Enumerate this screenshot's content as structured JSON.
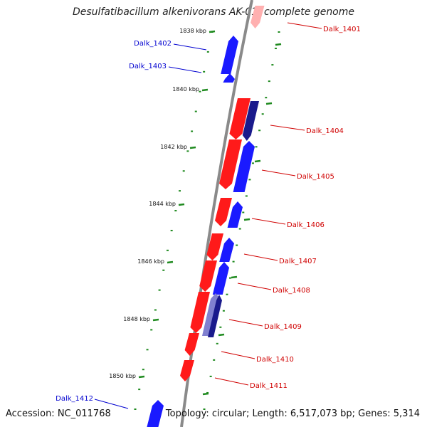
{
  "title": "Desulfatibacillum alkenivorans AK-01, complete genome",
  "footer": {
    "accession": "Accession: NC_011768",
    "summary": "Topology: circular; Length: 6,517,073 bp; Genes: 5,314"
  },
  "colors": {
    "forward": "#ff1a1a",
    "reverse": "#1a1aff",
    "reverse_dark": "#1a1a8c",
    "reverse_light": "#8080d0",
    "backbone": "#8a8a8a",
    "ticks": "#1f8a1f",
    "label_forward": "#d00000",
    "label_reverse": "#0000d0"
  },
  "ruler": {
    "left_ticks": [
      "1838 kbp",
      "1840 kbp",
      "1842 kbp",
      "1844 kbp",
      "1846 kbp",
      "1848 kbp",
      "1850 kbp"
    ]
  },
  "genes": [
    {
      "label": "Dalk_1401",
      "strand": "+"
    },
    {
      "label": "Dalk_1402",
      "strand": "-"
    },
    {
      "label": "Dalk_1403",
      "strand": "-"
    },
    {
      "label": "Dalk_1404",
      "strand": "+"
    },
    {
      "label": "Dalk_1405",
      "strand": "+"
    },
    {
      "label": "Dalk_1406",
      "strand": "+"
    },
    {
      "label": "Dalk_1407",
      "strand": "+"
    },
    {
      "label": "Dalk_1408",
      "strand": "+"
    },
    {
      "label": "Dalk_1409",
      "strand": "+"
    },
    {
      "label": "Dalk_1410",
      "strand": "+"
    },
    {
      "label": "Dalk_1411",
      "strand": "+"
    },
    {
      "label": "Dalk_1412",
      "strand": "-"
    }
  ]
}
